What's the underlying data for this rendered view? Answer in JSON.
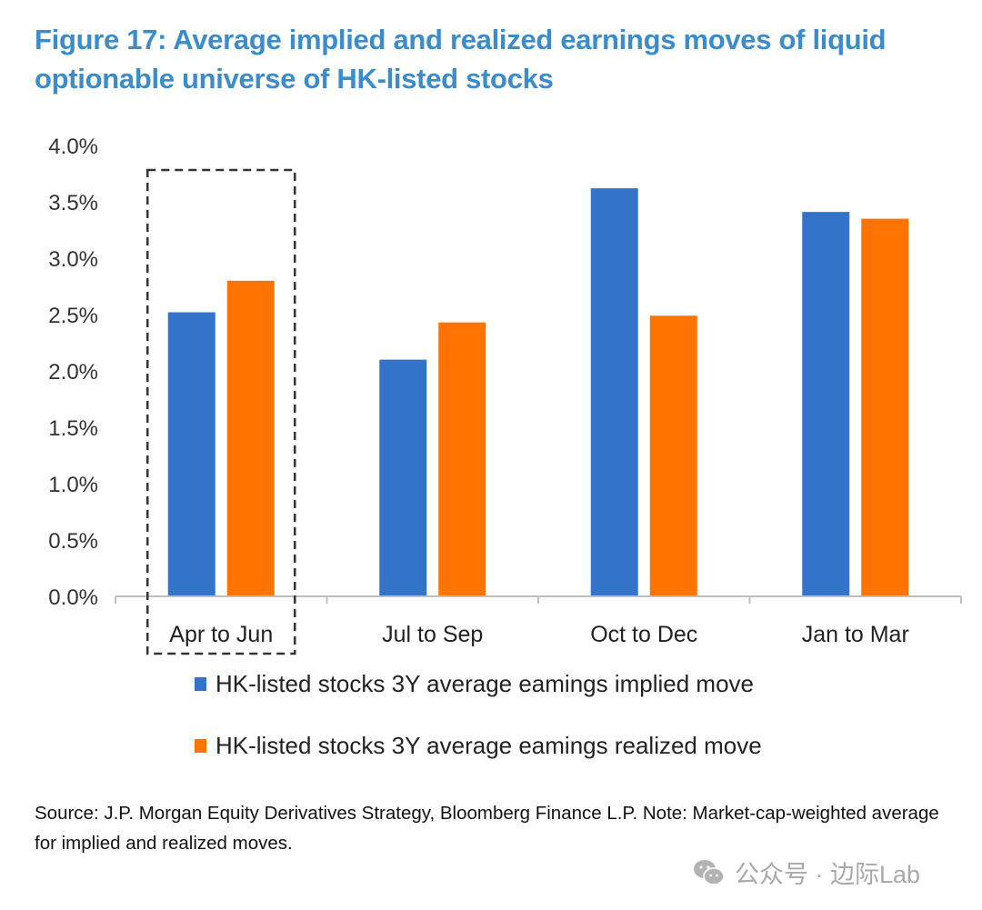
{
  "title": "Figure 17: Average implied and realized earnings moves of liquid optionable universe of HK-listed stocks",
  "source_note": "Source: J.P. Morgan Equity Derivatives Strategy, Bloomberg Finance L.P. Note: Market-cap-weighted average for implied and realized moves.",
  "watermark": "公众号 · 边际Lab",
  "colors": {
    "implied": "#3373c9",
    "realized": "#ff7300",
    "title": "#3a8ccb"
  },
  "chart_data": {
    "type": "bar",
    "title": "Figure 17: Average implied and realized earnings moves of liquid optionable universe of HK-listed stocks",
    "xlabel": "",
    "ylabel": "",
    "categories": [
      "Apr to Jun",
      "Jul to Sep",
      "Oct to Dec",
      "Jan to Mar"
    ],
    "series": [
      {
        "name": "HK-listed stocks 3Y average earnings implied move",
        "values": [
          2.52,
          2.1,
          3.62,
          3.41
        ]
      },
      {
        "name": "HK-listed stocks 3Y average earnings realized move",
        "values": [
          2.8,
          2.43,
          2.49,
          3.35
        ]
      }
    ],
    "unit": "%",
    "ylim": [
      0,
      4.0
    ],
    "yticks": [
      "0.0%",
      "0.5%",
      "1.0%",
      "1.5%",
      "2.0%",
      "2.5%",
      "3.0%",
      "3.5%",
      "4.0%"
    ],
    "ytick_values": [
      0,
      0.5,
      1.0,
      1.5,
      2.0,
      2.5,
      3.0,
      3.5,
      4.0
    ],
    "grid": false,
    "legend_position": "bottom",
    "annotations": [
      "dashed box highlighting Apr to Jun"
    ],
    "highlighted_category": "Apr to Jun"
  },
  "legend": [
    {
      "label": "HK-listed stocks 3Y average eamings implied move"
    },
    {
      "label": "HK-listed stocks 3Y average eamings realized move"
    }
  ]
}
